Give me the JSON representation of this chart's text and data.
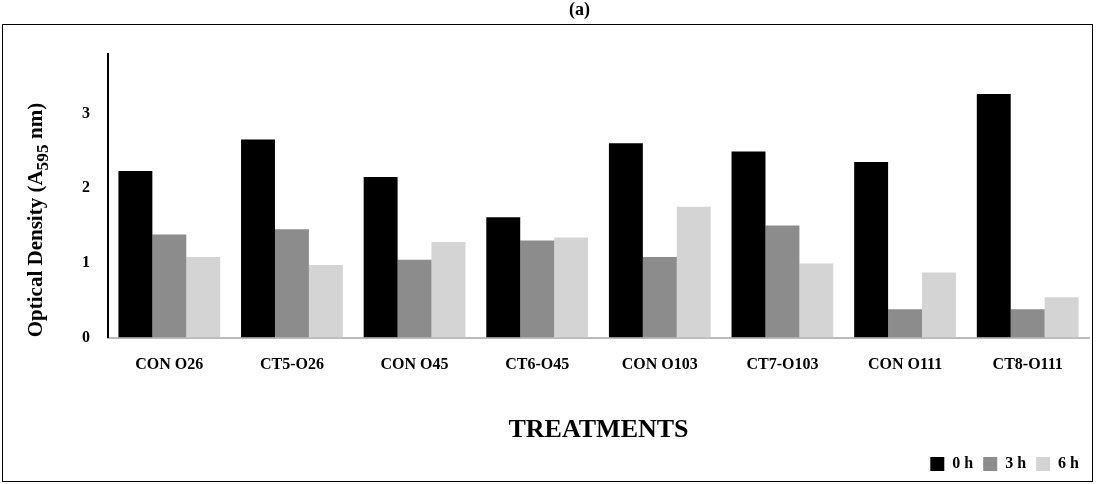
{
  "chart_data": {
    "type": "bar",
    "title": "(a)",
    "xlabel": "TREATMENTS",
    "ylabel": "Optical Density (A$_{595}$ nm)",
    "categories": [
      "CON O26",
      "CT5-O26",
      "CON O45",
      "CT6-O45",
      "CON O103",
      "CT7-O103",
      "CON O111",
      "CT8-O111"
    ],
    "series": [
      {
        "name": "0 h",
        "color": "#000000",
        "values": [
          2.23,
          2.65,
          2.15,
          1.61,
          2.6,
          2.49,
          2.35,
          3.26
        ]
      },
      {
        "name": "3 h",
        "color": "#8c8c8c",
        "values": [
          1.38,
          1.45,
          1.04,
          1.3,
          1.08,
          1.5,
          0.38,
          0.38
        ]
      },
      {
        "name": "6 h",
        "color": "#d4d4d4",
        "values": [
          1.08,
          0.97,
          1.28,
          1.34,
          1.75,
          0.99,
          0.87,
          0.54
        ]
      }
    ],
    "ylim": [
      0,
      3.8
    ],
    "yticks": [
      0,
      1,
      2,
      3
    ],
    "grid": false,
    "legend": "bottom right"
  }
}
